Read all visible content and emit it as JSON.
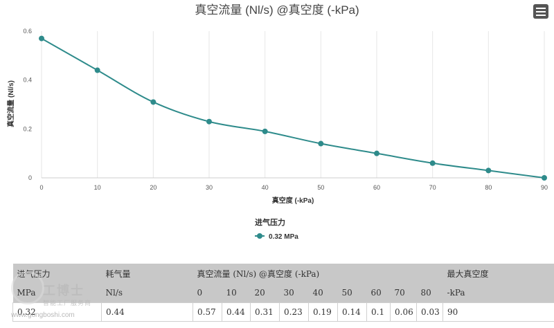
{
  "chart_data": {
    "type": "line",
    "title": "真空流量 (Nl/s) @真空度 (-kPa)",
    "xlabel": "真空度 (-kPa)",
    "ylabel": "真空流量 (Nl/s)",
    "x": [
      0,
      10,
      20,
      30,
      40,
      50,
      60,
      70,
      80,
      90
    ],
    "x_ticks": [
      "0",
      "10",
      "20",
      "30",
      "40",
      "50",
      "60",
      "70",
      "80",
      "90"
    ],
    "y_ticks": [
      "0",
      "0.2",
      "0.4",
      "0.6"
    ],
    "xlim": [
      0,
      90
    ],
    "ylim": [
      0,
      0.6
    ],
    "grid": "vertical",
    "legend_title": "进气压力",
    "legend_position": "bottom-center",
    "series": [
      {
        "name": "0.32 MPa",
        "color": "#2e8b8b",
        "values": [
          0.57,
          0.44,
          0.31,
          0.23,
          0.19,
          0.14,
          0.1,
          0.06,
          0.03,
          0
        ]
      }
    ]
  },
  "menu": {
    "icon": "hamburger-menu-icon"
  },
  "spec_table": {
    "headers": [
      [
        "进气压力",
        "耗气量",
        "真空流量 (Nl/s) @真空度 (-kPa)",
        "最大真空度"
      ],
      [
        "MPa",
        "Nl/s",
        "0",
        "10",
        "20",
        "30",
        "40",
        "50",
        "60",
        "70",
        "80",
        "-kPa"
      ]
    ],
    "rows": [
      [
        "0.32",
        "0.44",
        "0.57",
        "0.44",
        "0.31",
        "0.23",
        "0.19",
        "0.14",
        "0.1",
        "0.06",
        "0.03",
        "90"
      ]
    ]
  },
  "watermark": {
    "name": "工博士",
    "sub": "智能工厂服务商",
    "url": "www.gongboshi.com"
  }
}
